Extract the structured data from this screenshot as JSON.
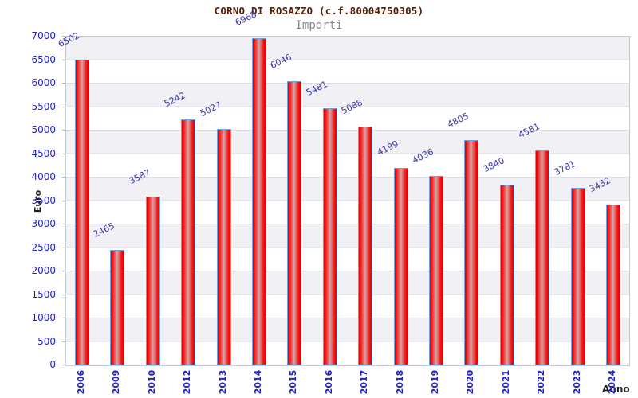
{
  "title": "CORNO DI ROSAZZO (c.f.80004750305)",
  "subtitle": "Importi",
  "chart_data": {
    "type": "bar",
    "categories": [
      "2006",
      "2009",
      "2010",
      "2012",
      "2013",
      "2014",
      "2015",
      "2016",
      "2017",
      "2018",
      "2019",
      "2020",
      "2021",
      "2022",
      "2023",
      "2024"
    ],
    "values": [
      6502,
      2465,
      3587,
      5242,
      5027,
      6968,
      6046,
      5481,
      5088,
      4199,
      4036,
      4805,
      3840,
      4581,
      3781,
      3432
    ],
    "xlabel": "Anno",
    "ylabel": "Euro",
    "ylim": [
      0,
      7000
    ],
    "ytick_step": 500,
    "grid": true,
    "legend": "none",
    "bar_value_labels_shown": true,
    "colors": {
      "title": "#5a1e02",
      "subtitle": "#8a8a8a",
      "value_label": "#3838ac",
      "tick_label": "#2020cc",
      "axis_title": "#222222",
      "bar_edge": "#70a2dc",
      "bar_fill_edge": "#e10000",
      "bar_fill_center": "#d8a4a4",
      "band": "#f0f0f5",
      "grid_line": "#dcdce4",
      "plot_border": "#c8c8d0"
    }
  }
}
